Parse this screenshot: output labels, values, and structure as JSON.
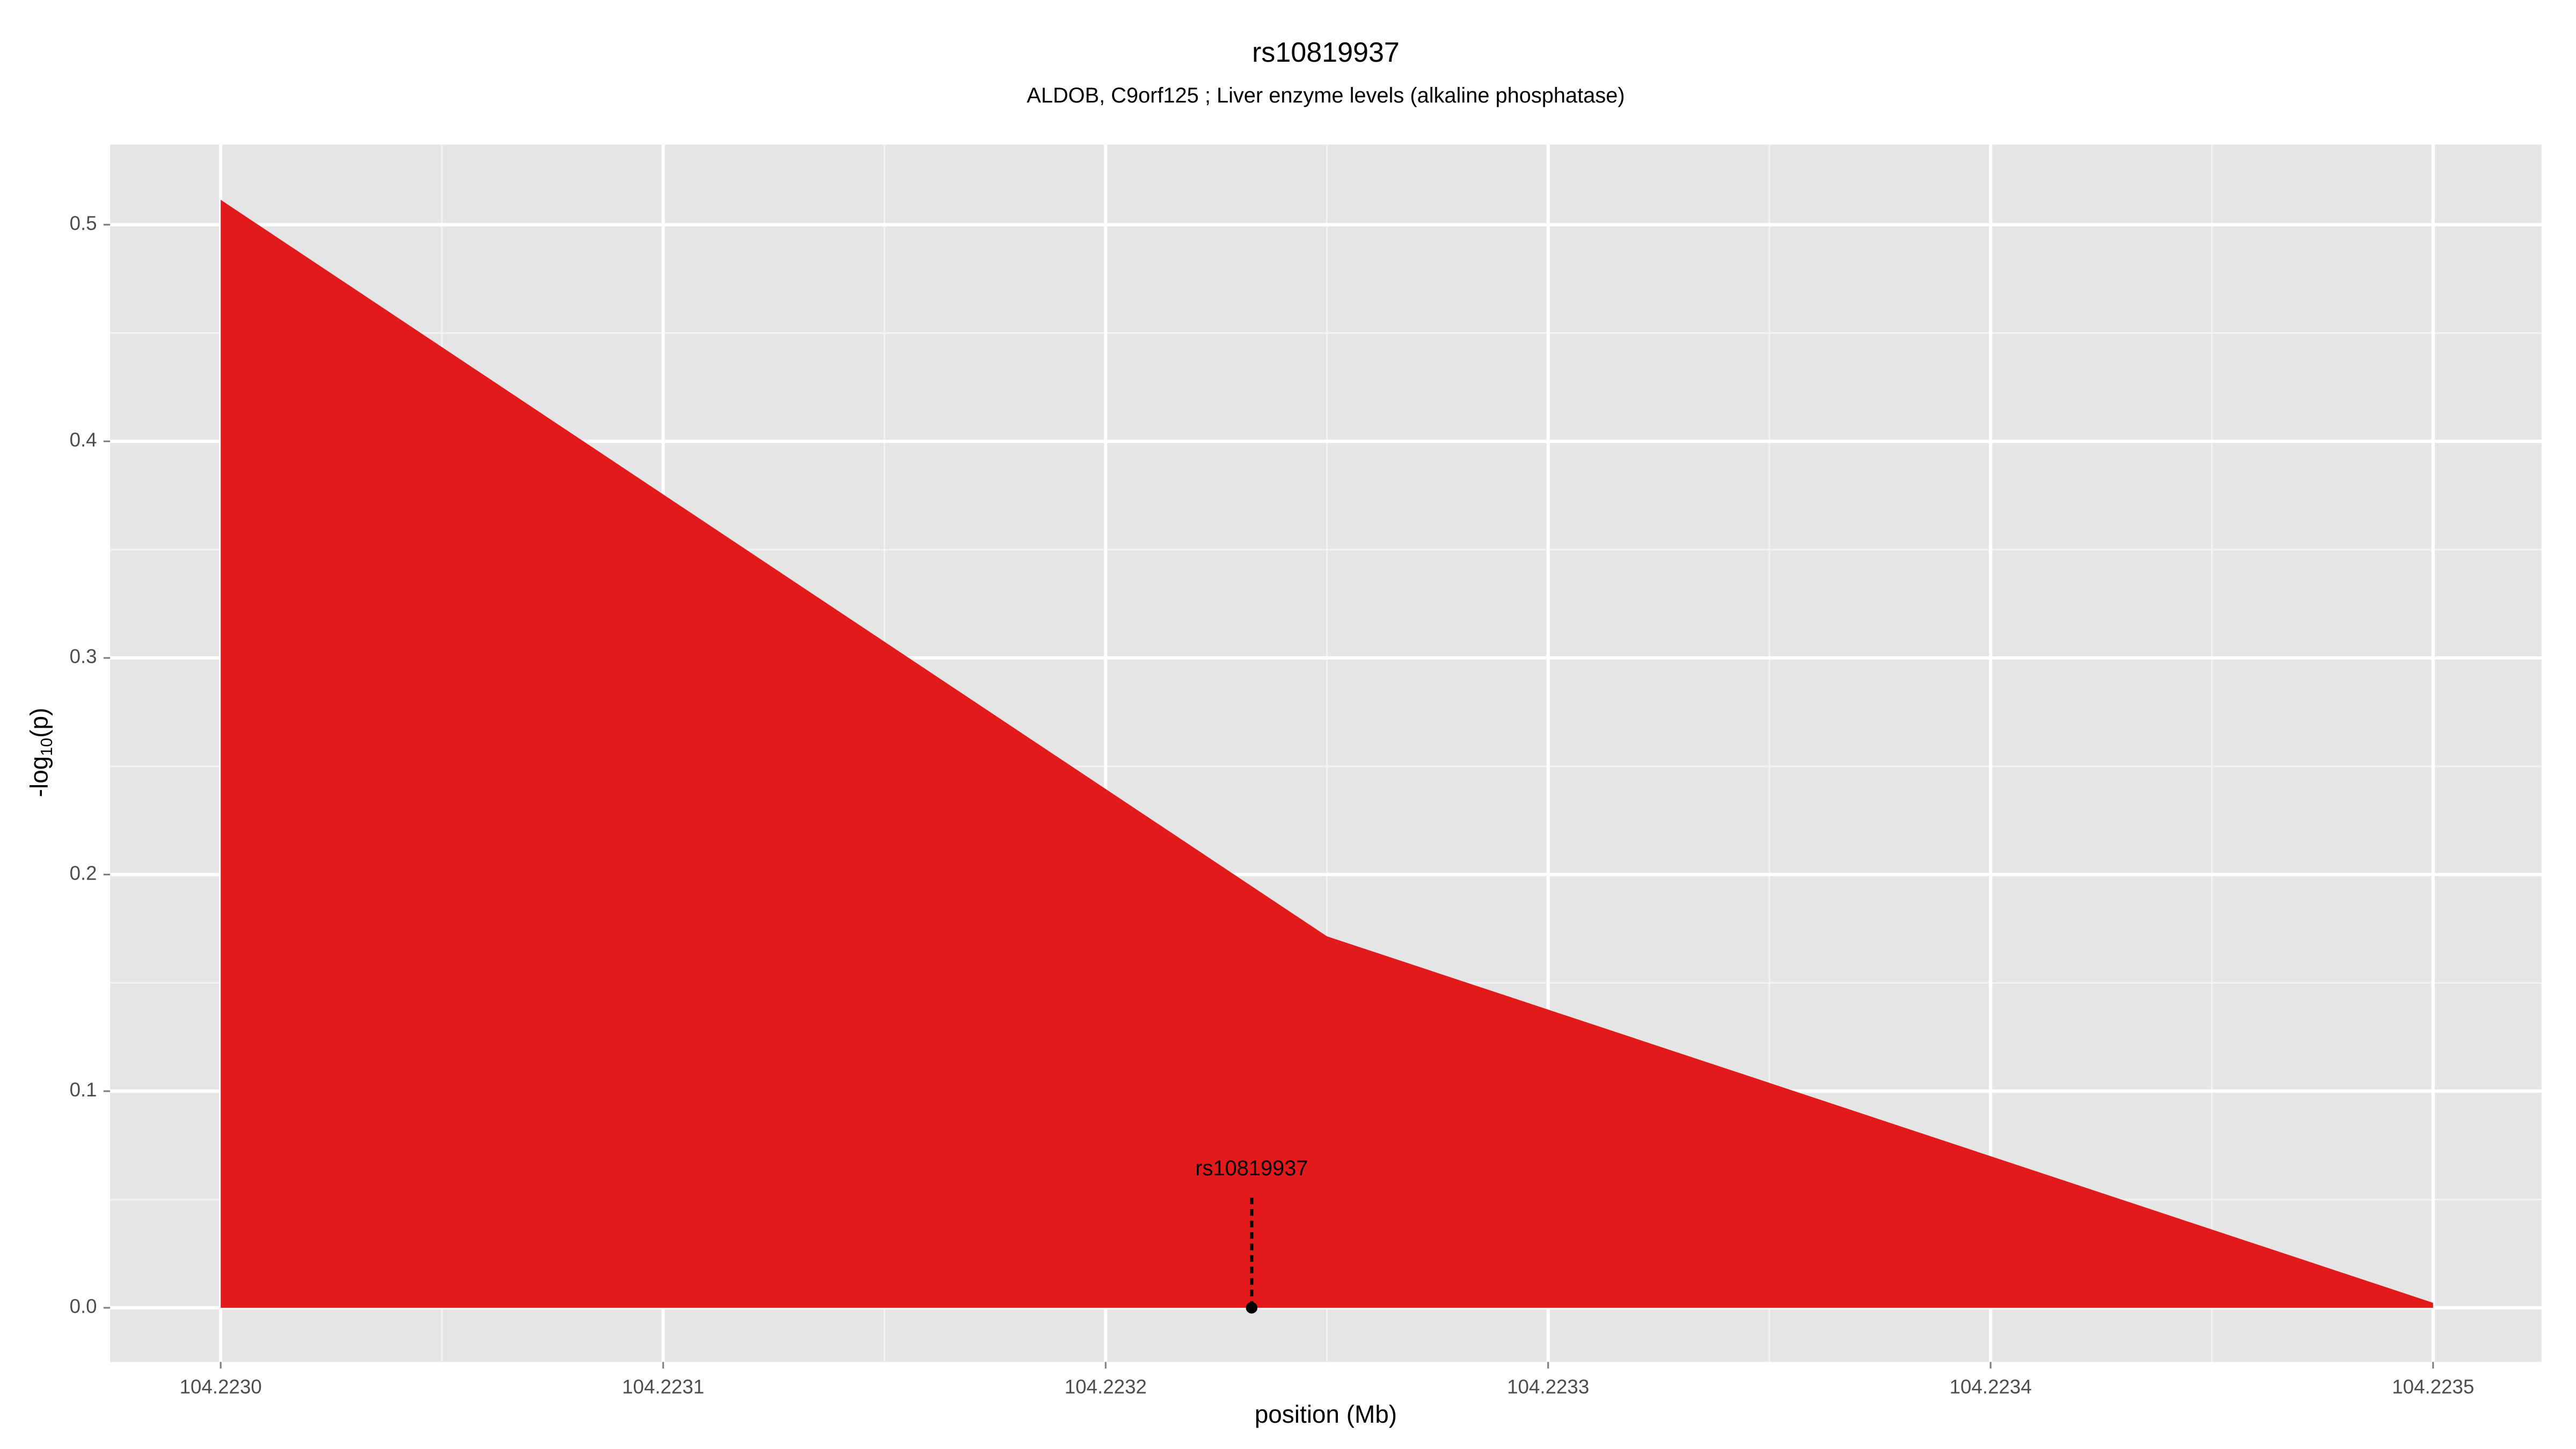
{
  "chart_data": {
    "type": "area",
    "title": "rs10819937",
    "subtitle": "ALDOB, C9orf125 ; Liver enzyme levels (alkaline phosphatase)",
    "xlabel": "position (Mb)",
    "ylabel": {
      "prefix": "-log",
      "sub": "10",
      "suffix": "(p)"
    },
    "x": [
      104.223,
      104.22325,
      104.2235
    ],
    "values": [
      0.5115,
      0.1715,
      0.0023
    ],
    "color": "#e31a1c",
    "xlim": [
      104.222975,
      104.2235245
    ],
    "ylim": [
      -0.025,
      0.537
    ],
    "xticks": [
      {
        "value": 104.223,
        "label": "104.2230"
      },
      {
        "value": 104.2231,
        "label": "104.2231"
      },
      {
        "value": 104.2232,
        "label": "104.2232"
      },
      {
        "value": 104.2233,
        "label": "104.2233"
      },
      {
        "value": 104.2234,
        "label": "104.2234"
      },
      {
        "value": 104.2235,
        "label": "104.2235"
      }
    ],
    "yticks": [
      {
        "value": 0,
        "label": "0.0"
      },
      0.1,
      0.2,
      0.3,
      0.4,
      0.5
    ],
    "xminorticks": [
      104.22305,
      104.22315,
      104.22325,
      104.22335,
      104.22345
    ],
    "yminorticks": [
      0.05,
      0.15,
      0.25,
      0.35,
      0.45
    ],
    "grid": true,
    "annotation": {
      "text": "rs10819937",
      "x": 104.223233,
      "y": 0
    }
  }
}
